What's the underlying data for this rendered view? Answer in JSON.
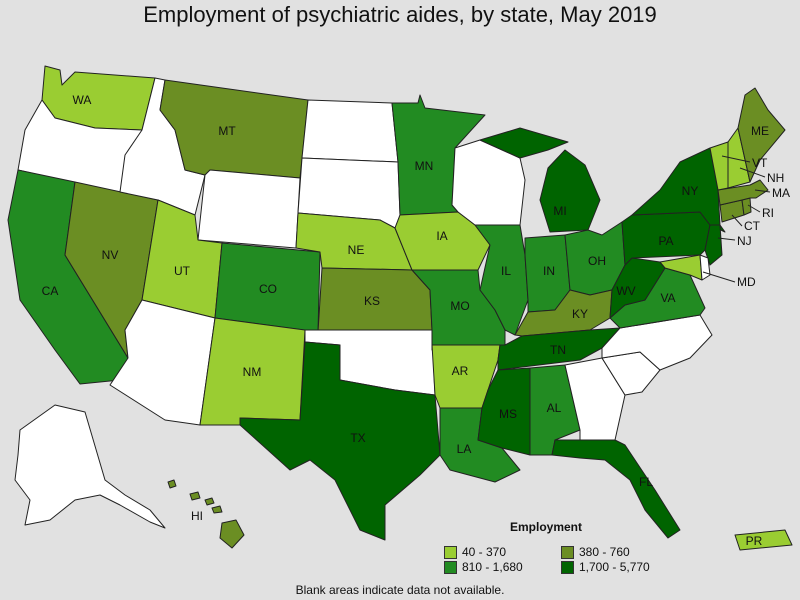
{
  "title": "Employment of psychiatric aides, by state, May 2019",
  "footnote": "Blank areas indicate data not available.",
  "legend": {
    "title": "Employment",
    "items": [
      {
        "label": "40 - 370",
        "color": "#9acd32"
      },
      {
        "label": "380 - 760",
        "color": "#6b8e23"
      },
      {
        "label": "810 - 1,680",
        "color": "#228b22"
      },
      {
        "label": "1,700 - 5,770",
        "color": "#006400"
      }
    ]
  },
  "colors": {
    "no_data": "#ffffff",
    "background": "#e1e1e1"
  },
  "states": {
    "WA": {
      "label": "WA",
      "class": 1
    },
    "OR": {
      "label": "",
      "class": 0
    },
    "CA": {
      "label": "CA",
      "class": 3
    },
    "NV": {
      "label": "NV",
      "class": 2
    },
    "ID": {
      "label": "",
      "class": 0
    },
    "MT": {
      "label": "MT",
      "class": 2
    },
    "WY": {
      "label": "",
      "class": 0
    },
    "UT": {
      "label": "UT",
      "class": 1
    },
    "AZ": {
      "label": "",
      "class": 0
    },
    "CO": {
      "label": "CO",
      "class": 3
    },
    "NM": {
      "label": "NM",
      "class": 1
    },
    "ND": {
      "label": "",
      "class": 0
    },
    "SD": {
      "label": "",
      "class": 0
    },
    "NE": {
      "label": "NE",
      "class": 1
    },
    "KS": {
      "label": "KS",
      "class": 2
    },
    "OK": {
      "label": "",
      "class": 0
    },
    "TX": {
      "label": "TX",
      "class": 4
    },
    "MN": {
      "label": "MN",
      "class": 3
    },
    "IA": {
      "label": "IA",
      "class": 1
    },
    "MO": {
      "label": "MO",
      "class": 3
    },
    "AR": {
      "label": "AR",
      "class": 1
    },
    "LA": {
      "label": "LA",
      "class": 3
    },
    "WI": {
      "label": "",
      "class": 0
    },
    "IL": {
      "label": "IL",
      "class": 3
    },
    "MI": {
      "label": "MI",
      "class": 4
    },
    "IN": {
      "label": "IN",
      "class": 3
    },
    "OH": {
      "label": "OH",
      "class": 3
    },
    "KY": {
      "label": "KY",
      "class": 2
    },
    "TN": {
      "label": "TN",
      "class": 4
    },
    "MS": {
      "label": "MS",
      "class": 4
    },
    "AL": {
      "label": "AL",
      "class": 3
    },
    "GA": {
      "label": "",
      "class": 0
    },
    "FL": {
      "label": "FL",
      "class": 4
    },
    "SC": {
      "label": "",
      "class": 0
    },
    "NC": {
      "label": "",
      "class": 0
    },
    "VA": {
      "label": "VA",
      "class": 3
    },
    "WV": {
      "label": "WV",
      "class": 4
    },
    "PA": {
      "label": "PA",
      "class": 4
    },
    "NY": {
      "label": "NY",
      "class": 4
    },
    "NJ": {
      "label": "NJ",
      "class": 4
    },
    "DE": {
      "label": "",
      "class": 0
    },
    "MD": {
      "label": "MD",
      "class": 1
    },
    "CT": {
      "label": "CT",
      "class": 2
    },
    "RI": {
      "label": "RI",
      "class": 2
    },
    "MA": {
      "label": "MA",
      "class": 2
    },
    "VT": {
      "label": "VT",
      "class": 1
    },
    "NH": {
      "label": "NH",
      "class": 1
    },
    "ME": {
      "label": "ME",
      "class": 2
    },
    "AK": {
      "label": "",
      "class": 0
    },
    "HI": {
      "label": "HI",
      "class": 2
    },
    "PR": {
      "label": "PR",
      "class": 1
    }
  }
}
